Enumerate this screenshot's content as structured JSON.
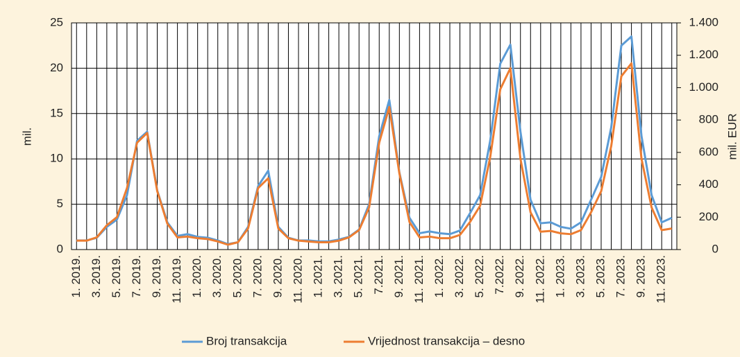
{
  "chart_data": {
    "type": "line",
    "categories": [
      "1. 2019.",
      null,
      "3. 2019.",
      null,
      "5. 2019.",
      null,
      "7. 2019.",
      null,
      "9. 2019.",
      null,
      "11. 2019.",
      null,
      "1. 2020.",
      null,
      "3. 2020.",
      null,
      "5. 2020.",
      null,
      "7. 2020.",
      null,
      "9. 2020.",
      null,
      "11. 2020.",
      null,
      "1. 2021.",
      null,
      "3. 2021.",
      null,
      "5. 2021.",
      null,
      "7.2021.",
      null,
      "9. 2021.",
      null,
      "11. 2021.",
      null,
      "1. 2022.",
      null,
      "3. 2022.",
      null,
      "5. 2022.",
      null,
      "7.2022.",
      null,
      "9. 2022.",
      null,
      "11. 2022.",
      null,
      "1. 2023.",
      null,
      "3. 2023.",
      null,
      "5. 2023.",
      null,
      "7. 2023.",
      null,
      "9. 2023.",
      null,
      "11. 2023.",
      null
    ],
    "series": [
      {
        "name": "Broj transakcija",
        "color": "#5b9bd5",
        "axis": "y",
        "values": [
          1.0,
          1.0,
          1.3,
          2.5,
          3.3,
          6.0,
          12.0,
          13.0,
          6.5,
          3.0,
          1.5,
          1.7,
          1.4,
          1.3,
          1.0,
          0.6,
          0.8,
          2.5,
          7.0,
          8.7,
          2.5,
          1.3,
          1.0,
          1.0,
          0.9,
          0.9,
          1.1,
          1.4,
          2.2,
          5.0,
          12.5,
          16.5,
          8.5,
          3.5,
          1.8,
          2.0,
          1.8,
          1.7,
          2.1,
          4.0,
          6.0,
          12.0,
          20.5,
          22.6,
          13.0,
          5.5,
          2.9,
          3.0,
          2.5,
          2.3,
          3.0,
          5.5,
          8.0,
          13.5,
          22.5,
          23.5,
          12.5,
          6.0,
          3.0,
          3.5
        ]
      },
      {
        "name": "Vrijednost transakcija – desno",
        "color": "#ed7d31",
        "axis": "y2",
        "values": [
          55,
          55,
          75,
          150,
          200,
          380,
          660,
          720,
          360,
          160,
          75,
          80,
          70,
          65,
          50,
          30,
          45,
          130,
          380,
          440,
          130,
          70,
          55,
          50,
          45,
          45,
          55,
          75,
          120,
          260,
          660,
          880,
          470,
          170,
          75,
          80,
          70,
          70,
          90,
          170,
          270,
          570,
          990,
          1120,
          560,
          230,
          110,
          115,
          100,
          95,
          120,
          230,
          360,
          640,
          1070,
          1150,
          560,
          260,
          120,
          130
        ]
      }
    ],
    "ylabel": "mil.",
    "y2label": "mil. EUR",
    "ylim": [
      0,
      25
    ],
    "yticks": [
      0,
      5,
      10,
      15,
      20,
      25
    ],
    "y2lim": [
      0,
      1400
    ],
    "y2ticks": [
      0,
      200,
      400,
      600,
      800,
      {
        "value": 1000,
        "label": "1.000"
      },
      {
        "value": 1200,
        "label": "1.200"
      },
      {
        "value": 1400,
        "label": "1.400"
      }
    ],
    "grid": true,
    "legend": "bottom"
  }
}
